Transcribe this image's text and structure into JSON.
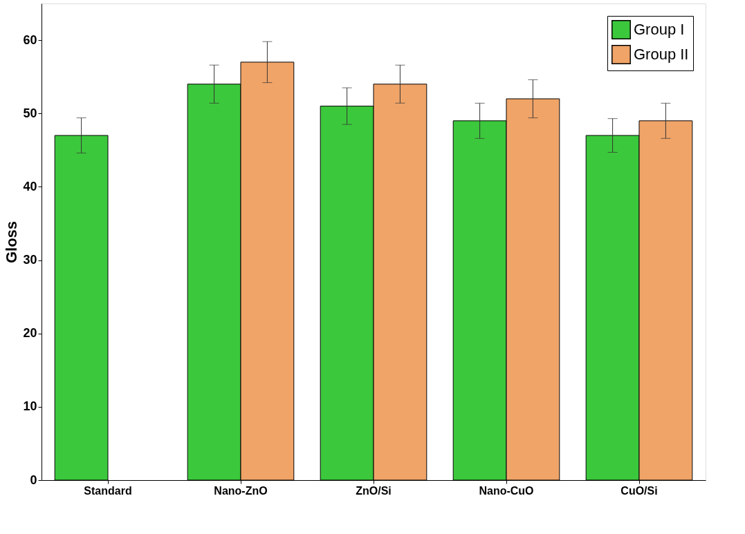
{
  "chart_data": {
    "type": "bar",
    "ylabel": "Gloss",
    "categories": [
      "Standard",
      "Nano-ZnO",
      "ZnO/Si",
      "Nano-CuO",
      "CuO/Si"
    ],
    "series": [
      {
        "name": "Group I",
        "color": "#3cc83c",
        "values": [
          47,
          54,
          51,
          49,
          47
        ],
        "errors": [
          2.4,
          2.6,
          2.5,
          2.4,
          2.3
        ]
      },
      {
        "name": "Group II",
        "color": "#f0a468",
        "values": [
          null,
          57,
          54,
          52,
          49
        ],
        "errors": [
          null,
          2.8,
          2.6,
          2.6,
          2.4
        ]
      }
    ],
    "ylim": [
      0,
      65
    ],
    "yticks": [
      0,
      10,
      20,
      30,
      40,
      50,
      60
    ],
    "grid": false,
    "legend": "top right"
  }
}
